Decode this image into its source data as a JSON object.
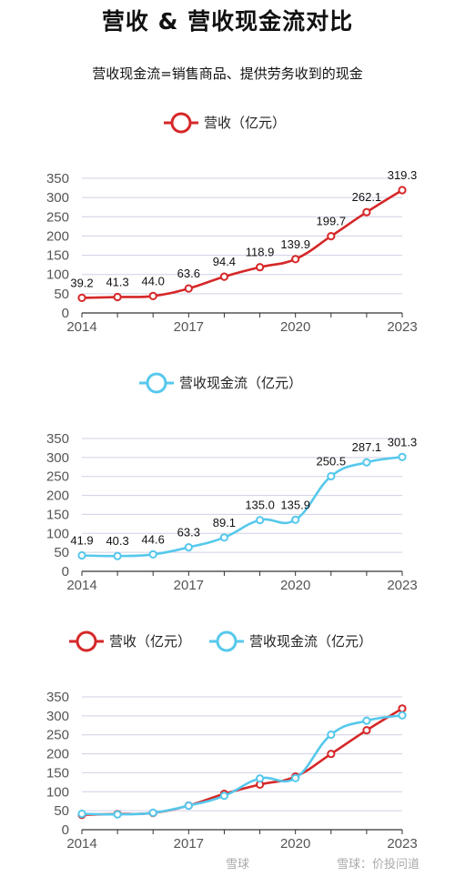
{
  "title": "营收 & 营收现金流对比",
  "subtitle": "营收现金流=销售商品、提供劳务收到的现金",
  "colors": {
    "revenue": "#d62728",
    "cashflow": "#56c8ec",
    "grid": "#cfd0e6",
    "axis": "#333333"
  },
  "chart_data": [
    {
      "type": "line",
      "legend": [
        "营收（亿元）"
      ],
      "x": [
        2014,
        2015,
        2016,
        2017,
        2018,
        2019,
        2020,
        2021,
        2022,
        2023
      ],
      "xticks": [
        "2014",
        "2017",
        "2020",
        "2023"
      ],
      "yticks": [
        "0",
        "50",
        "100",
        "150",
        "200",
        "250",
        "300",
        "350"
      ],
      "ylim": [
        0,
        350
      ],
      "series": [
        {
          "name": "营收（亿元）",
          "key": "revenue",
          "values": [
            39.2,
            41.3,
            44.0,
            63.6,
            94.4,
            118.9,
            139.9,
            199.7,
            262.1,
            319.3
          ],
          "labels": [
            "39.2",
            "41.3",
            "44.0",
            "63.6",
            "94.4",
            "118.9",
            "139.9",
            "199.7",
            "262.1",
            "319.3"
          ]
        }
      ]
    },
    {
      "type": "line",
      "legend": [
        "营收现金流（亿元）"
      ],
      "x": [
        2014,
        2015,
        2016,
        2017,
        2018,
        2019,
        2020,
        2021,
        2022,
        2023
      ],
      "xticks": [
        "2014",
        "2017",
        "2020",
        "2023"
      ],
      "yticks": [
        "0",
        "50",
        "100",
        "150",
        "200",
        "250",
        "300",
        "350"
      ],
      "ylim": [
        0,
        350
      ],
      "series": [
        {
          "name": "营收现金流（亿元）",
          "key": "cashflow",
          "values": [
            41.9,
            40.3,
            44.6,
            63.3,
            89.1,
            135.0,
            135.9,
            250.5,
            287.1,
            301.3
          ],
          "labels": [
            "41.9",
            "40.3",
            "44.6",
            "63.3",
            "89.1",
            "135.0",
            "135.9",
            "250.5",
            "287.1",
            "301.3"
          ]
        }
      ]
    },
    {
      "type": "line",
      "legend": [
        "营收（亿元）",
        "营收现金流（亿元）"
      ],
      "x": [
        2014,
        2015,
        2016,
        2017,
        2018,
        2019,
        2020,
        2021,
        2022,
        2023
      ],
      "xticks": [
        "2014",
        "2017",
        "2020",
        "2023"
      ],
      "yticks": [
        "0",
        "50",
        "100",
        "150",
        "200",
        "250",
        "300",
        "350"
      ],
      "ylim": [
        0,
        350
      ],
      "series": [
        {
          "name": "营收（亿元）",
          "key": "revenue",
          "values": [
            39.2,
            41.3,
            44.0,
            63.6,
            94.4,
            118.9,
            139.9,
            199.7,
            262.1,
            319.3
          ]
        },
        {
          "name": "营收现金流（亿元）",
          "key": "cashflow",
          "values": [
            41.9,
            40.3,
            44.6,
            63.3,
            89.1,
            135.0,
            135.9,
            250.5,
            287.1,
            301.3
          ]
        }
      ]
    }
  ],
  "watermark": {
    "left": "雪球",
    "right": "雪球：价投问道"
  }
}
